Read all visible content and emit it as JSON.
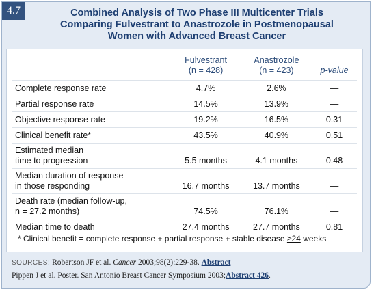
{
  "badge": "4.7",
  "title": [
    "Combined Analysis of Two Phase III Multicenter Trials",
    "Comparing Fulvestrant to Anastrozole in Postmenopausal",
    "Women with Advanced Breast Cancer"
  ],
  "table": {
    "header": [
      [
        "Fulvestrant",
        "(n = 428)"
      ],
      [
        "Anastrozole",
        "(n = 423)"
      ],
      [
        "p-value"
      ]
    ],
    "rows": [
      [
        [
          "Complete response rate"
        ],
        "4.7%",
        "2.6%",
        "—"
      ],
      [
        [
          "Partial response rate"
        ],
        "14.5%",
        "13.9%",
        "—"
      ],
      [
        [
          "Objective response rate"
        ],
        "19.2%",
        "16.5%",
        "0.31"
      ],
      [
        [
          "Clinical benefit rate*"
        ],
        "43.5%",
        "40.9%",
        "0.51"
      ],
      [
        [
          "Estimated median",
          "time to progression"
        ],
        "5.5 months",
        "4.1 months",
        "0.48"
      ],
      [
        [
          "Median duration of response",
          "in those responding"
        ],
        "16.7 months",
        "13.7 months",
        "—"
      ],
      [
        [
          "Death rate (median follow-up,",
          "n = 27.2 months)"
        ],
        "74.5%",
        "76.1%",
        "—"
      ],
      [
        [
          "Median time to death"
        ],
        "27.4 months",
        "27.7 months",
        "0.81"
      ]
    ]
  },
  "footnote": {
    "text": "* Clinical benefit = complete response + partial response + stable disease",
    "emph": "≥24",
    "tail": "weeks"
  },
  "sources": {
    "label": "SOURCES:",
    "line1": {
      "text": "Robertson JF et al.",
      "journal": "Cancer",
      "ref": "2003;98(2):229-38.",
      "link": "Abstract"
    },
    "line2": {
      "text": "Pippen J et al. Poster. San Antonio Breast Cancer Symposium 2003;",
      "link": "Abstract 426",
      "end": "."
    }
  }
}
